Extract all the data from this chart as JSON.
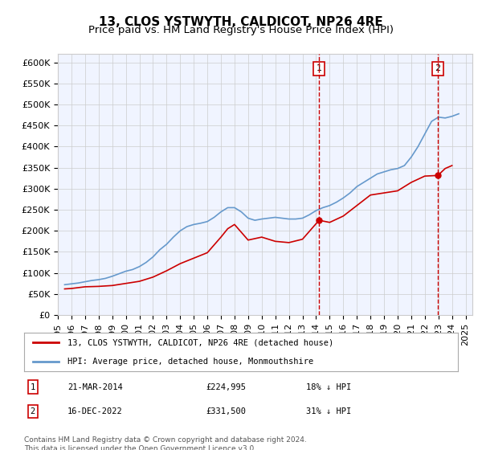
{
  "title": "13, CLOS YSTWYTH, CALDICOT, NP26 4RE",
  "subtitle": "Price paid vs. HM Land Registry's House Price Index (HPI)",
  "ylabel": "",
  "xlabel": "",
  "ylim": [
    0,
    620000
  ],
  "yticks": [
    0,
    50000,
    100000,
    150000,
    200000,
    250000,
    300000,
    350000,
    400000,
    450000,
    500000,
    550000,
    600000
  ],
  "ytick_labels": [
    "£0",
    "£50K",
    "£100K",
    "£150K",
    "£200K",
    "£250K",
    "£300K",
    "£350K",
    "£400K",
    "£450K",
    "£500K",
    "£550K",
    "£600K"
  ],
  "xmin": 1995.0,
  "xmax": 2025.5,
  "background_color": "#f0f4ff",
  "plot_bg_color": "#f0f4ff",
  "grid_color": "#cccccc",
  "red_line_color": "#cc0000",
  "blue_line_color": "#6699cc",
  "vline_color": "#cc0000",
  "vline1_x": 2014.22,
  "vline2_x": 2022.96,
  "marker1_label": "1",
  "marker2_label": "2",
  "legend_line1": "13, CLOS YSTWYTH, CALDICOT, NP26 4RE (detached house)",
  "legend_line2": "HPI: Average price, detached house, Monmouthshire",
  "table_row1": [
    "1",
    "21-MAR-2014",
    "£224,995",
    "18% ↓ HPI"
  ],
  "table_row2": [
    "2",
    "16-DEC-2022",
    "£331,500",
    "31% ↓ HPI"
  ],
  "footnote": "Contains HM Land Registry data © Crown copyright and database right 2024.\nThis data is licensed under the Open Government Licence v3.0.",
  "title_fontsize": 11,
  "subtitle_fontsize": 9.5,
  "tick_fontsize": 8,
  "hpi_data": {
    "years": [
      1995.5,
      1996.0,
      1996.5,
      1997.0,
      1997.5,
      1998.0,
      1998.5,
      1999.0,
      1999.5,
      2000.0,
      2000.5,
      2001.0,
      2001.5,
      2002.0,
      2002.5,
      2003.0,
      2003.5,
      2004.0,
      2004.5,
      2005.0,
      2005.5,
      2006.0,
      2006.5,
      2007.0,
      2007.5,
      2008.0,
      2008.5,
      2009.0,
      2009.5,
      2010.0,
      2010.5,
      2011.0,
      2011.5,
      2012.0,
      2012.5,
      2013.0,
      2013.5,
      2014.0,
      2014.5,
      2015.0,
      2015.5,
      2016.0,
      2016.5,
      2017.0,
      2017.5,
      2018.0,
      2018.5,
      2019.0,
      2019.5,
      2020.0,
      2020.5,
      2021.0,
      2021.5,
      2022.0,
      2022.5,
      2023.0,
      2023.5,
      2024.0,
      2024.5
    ],
    "values": [
      72000,
      74000,
      76000,
      79000,
      82000,
      84000,
      87000,
      92000,
      98000,
      104000,
      108000,
      115000,
      125000,
      138000,
      155000,
      168000,
      185000,
      200000,
      210000,
      215000,
      218000,
      222000,
      232000,
      245000,
      255000,
      255000,
      245000,
      230000,
      225000,
      228000,
      230000,
      232000,
      230000,
      228000,
      228000,
      230000,
      238000,
      248000,
      255000,
      260000,
      268000,
      278000,
      290000,
      305000,
      315000,
      325000,
      335000,
      340000,
      345000,
      348000,
      355000,
      375000,
      400000,
      430000,
      460000,
      470000,
      468000,
      472000,
      478000
    ]
  },
  "property_data": {
    "years": [
      1995.5,
      1996.0,
      1997.0,
      1998.0,
      1999.0,
      2000.0,
      2001.0,
      2002.0,
      2003.0,
      2004.0,
      2005.0,
      2006.0,
      2007.0,
      2007.5,
      2008.0,
      2009.0,
      2010.0,
      2011.0,
      2012.0,
      2013.0,
      2014.22,
      2015.0,
      2016.0,
      2017.0,
      2018.0,
      2019.0,
      2020.0,
      2021.0,
      2022.0,
      2022.96,
      2023.5,
      2024.0
    ],
    "values": [
      62000,
      63000,
      67000,
      68000,
      70000,
      75000,
      80000,
      90000,
      105000,
      122000,
      135000,
      148000,
      185000,
      205000,
      215000,
      178000,
      185000,
      175000,
      172000,
      180000,
      224995,
      220000,
      235000,
      260000,
      285000,
      290000,
      295000,
      315000,
      330000,
      331500,
      348000,
      355000
    ]
  }
}
